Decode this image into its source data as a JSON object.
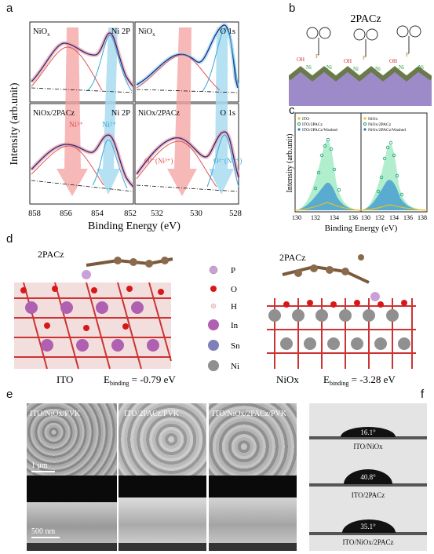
{
  "panel_labels": {
    "a": "a",
    "b": "b",
    "c": "c",
    "d": "d",
    "e": "e",
    "f": "f"
  },
  "xps": {
    "ylabel": "Intensity (arb.unit)",
    "xlabel": "Binding Energy (eV)",
    "ni_ticks": [
      "858",
      "856",
      "854",
      "852"
    ],
    "o_ticks": [
      "532",
      "530",
      "528"
    ],
    "subplots": [
      {
        "sample": "NiOx",
        "sample_sub": "x",
        "sample_base": "NiO",
        "core": "Ni 2P"
      },
      {
        "sample": "NiOx",
        "sample_sub": "x",
        "sample_base": "NiO",
        "core": "O 1s"
      },
      {
        "sample": "NiOx/2PACz",
        "core": "Ni 2P"
      },
      {
        "sample": "NiOx/2PACz",
        "core": "O 1s"
      }
    ],
    "ni3": "Ni³⁺",
    "ni2": "Ni²⁺",
    "o_ni3": "O²⁻(Ni³⁺)",
    "o_ni2": "O²⁻(Ni²⁺)",
    "colors": {
      "red": "#e05555",
      "blue": "#3aa8d8",
      "fit": "#1f2a8a",
      "data": "#f0a0a0",
      "arrow_red": "#f4a0a0",
      "arrow_blue": "#a8dcf0"
    }
  },
  "schematic": {
    "title": "2PACz"
  },
  "xps_p": {
    "ylabel": "Intensity (arb.unit)",
    "xlabel": "Binding Energy (eV)",
    "left_ticks": [
      "130",
      "132",
      "134",
      "136"
    ],
    "right_ticks": [
      "130",
      "132",
      "134",
      "136",
      "138"
    ],
    "legend_left": [
      "ITO",
      "ITO/2PACz",
      "ITO/2PACz/Washed"
    ],
    "legend_right": [
      "NiOx",
      "NiOx/2PACz",
      "NiOx/2PACz/Washed"
    ],
    "colors": {
      "ito": "#e8c020",
      "p2": "#1a9e70",
      "washed": "#2a7ab8",
      "fill2": "#a8ecc8",
      "fillw": "#4aa0d0"
    }
  },
  "dft": {
    "left_label": "2PACz",
    "right_label": "2PACz",
    "legend": [
      "P",
      "O",
      "H",
      "In",
      "Sn",
      "Ni"
    ],
    "legend_colors": [
      "#c9a0d8",
      "#d81818",
      "#f3d8d8",
      "#b060b0",
      "#8080b8",
      "#909090"
    ],
    "ito_name": "ITO",
    "ito_energy": "-0.79 eV",
    "nio_name": "NiOx",
    "nio_energy": "-3.28 eV",
    "ebinding": "E",
    "ebinding_sub": "binding"
  },
  "sem": {
    "titles": [
      "ITO/NiOx/PVK",
      "ITO/2PACz/PVK",
      "ITO/NiOx/2PACz/PVK"
    ],
    "scale_top": "1 μm",
    "scale_bottom": "500 nm"
  },
  "contact": {
    "angles": [
      "16.1°",
      "40.8°",
      "35.1°"
    ],
    "labels": [
      "ITO/NiOx",
      "ITO/2PACz",
      "ITO/NiOx/2PACz"
    ]
  }
}
